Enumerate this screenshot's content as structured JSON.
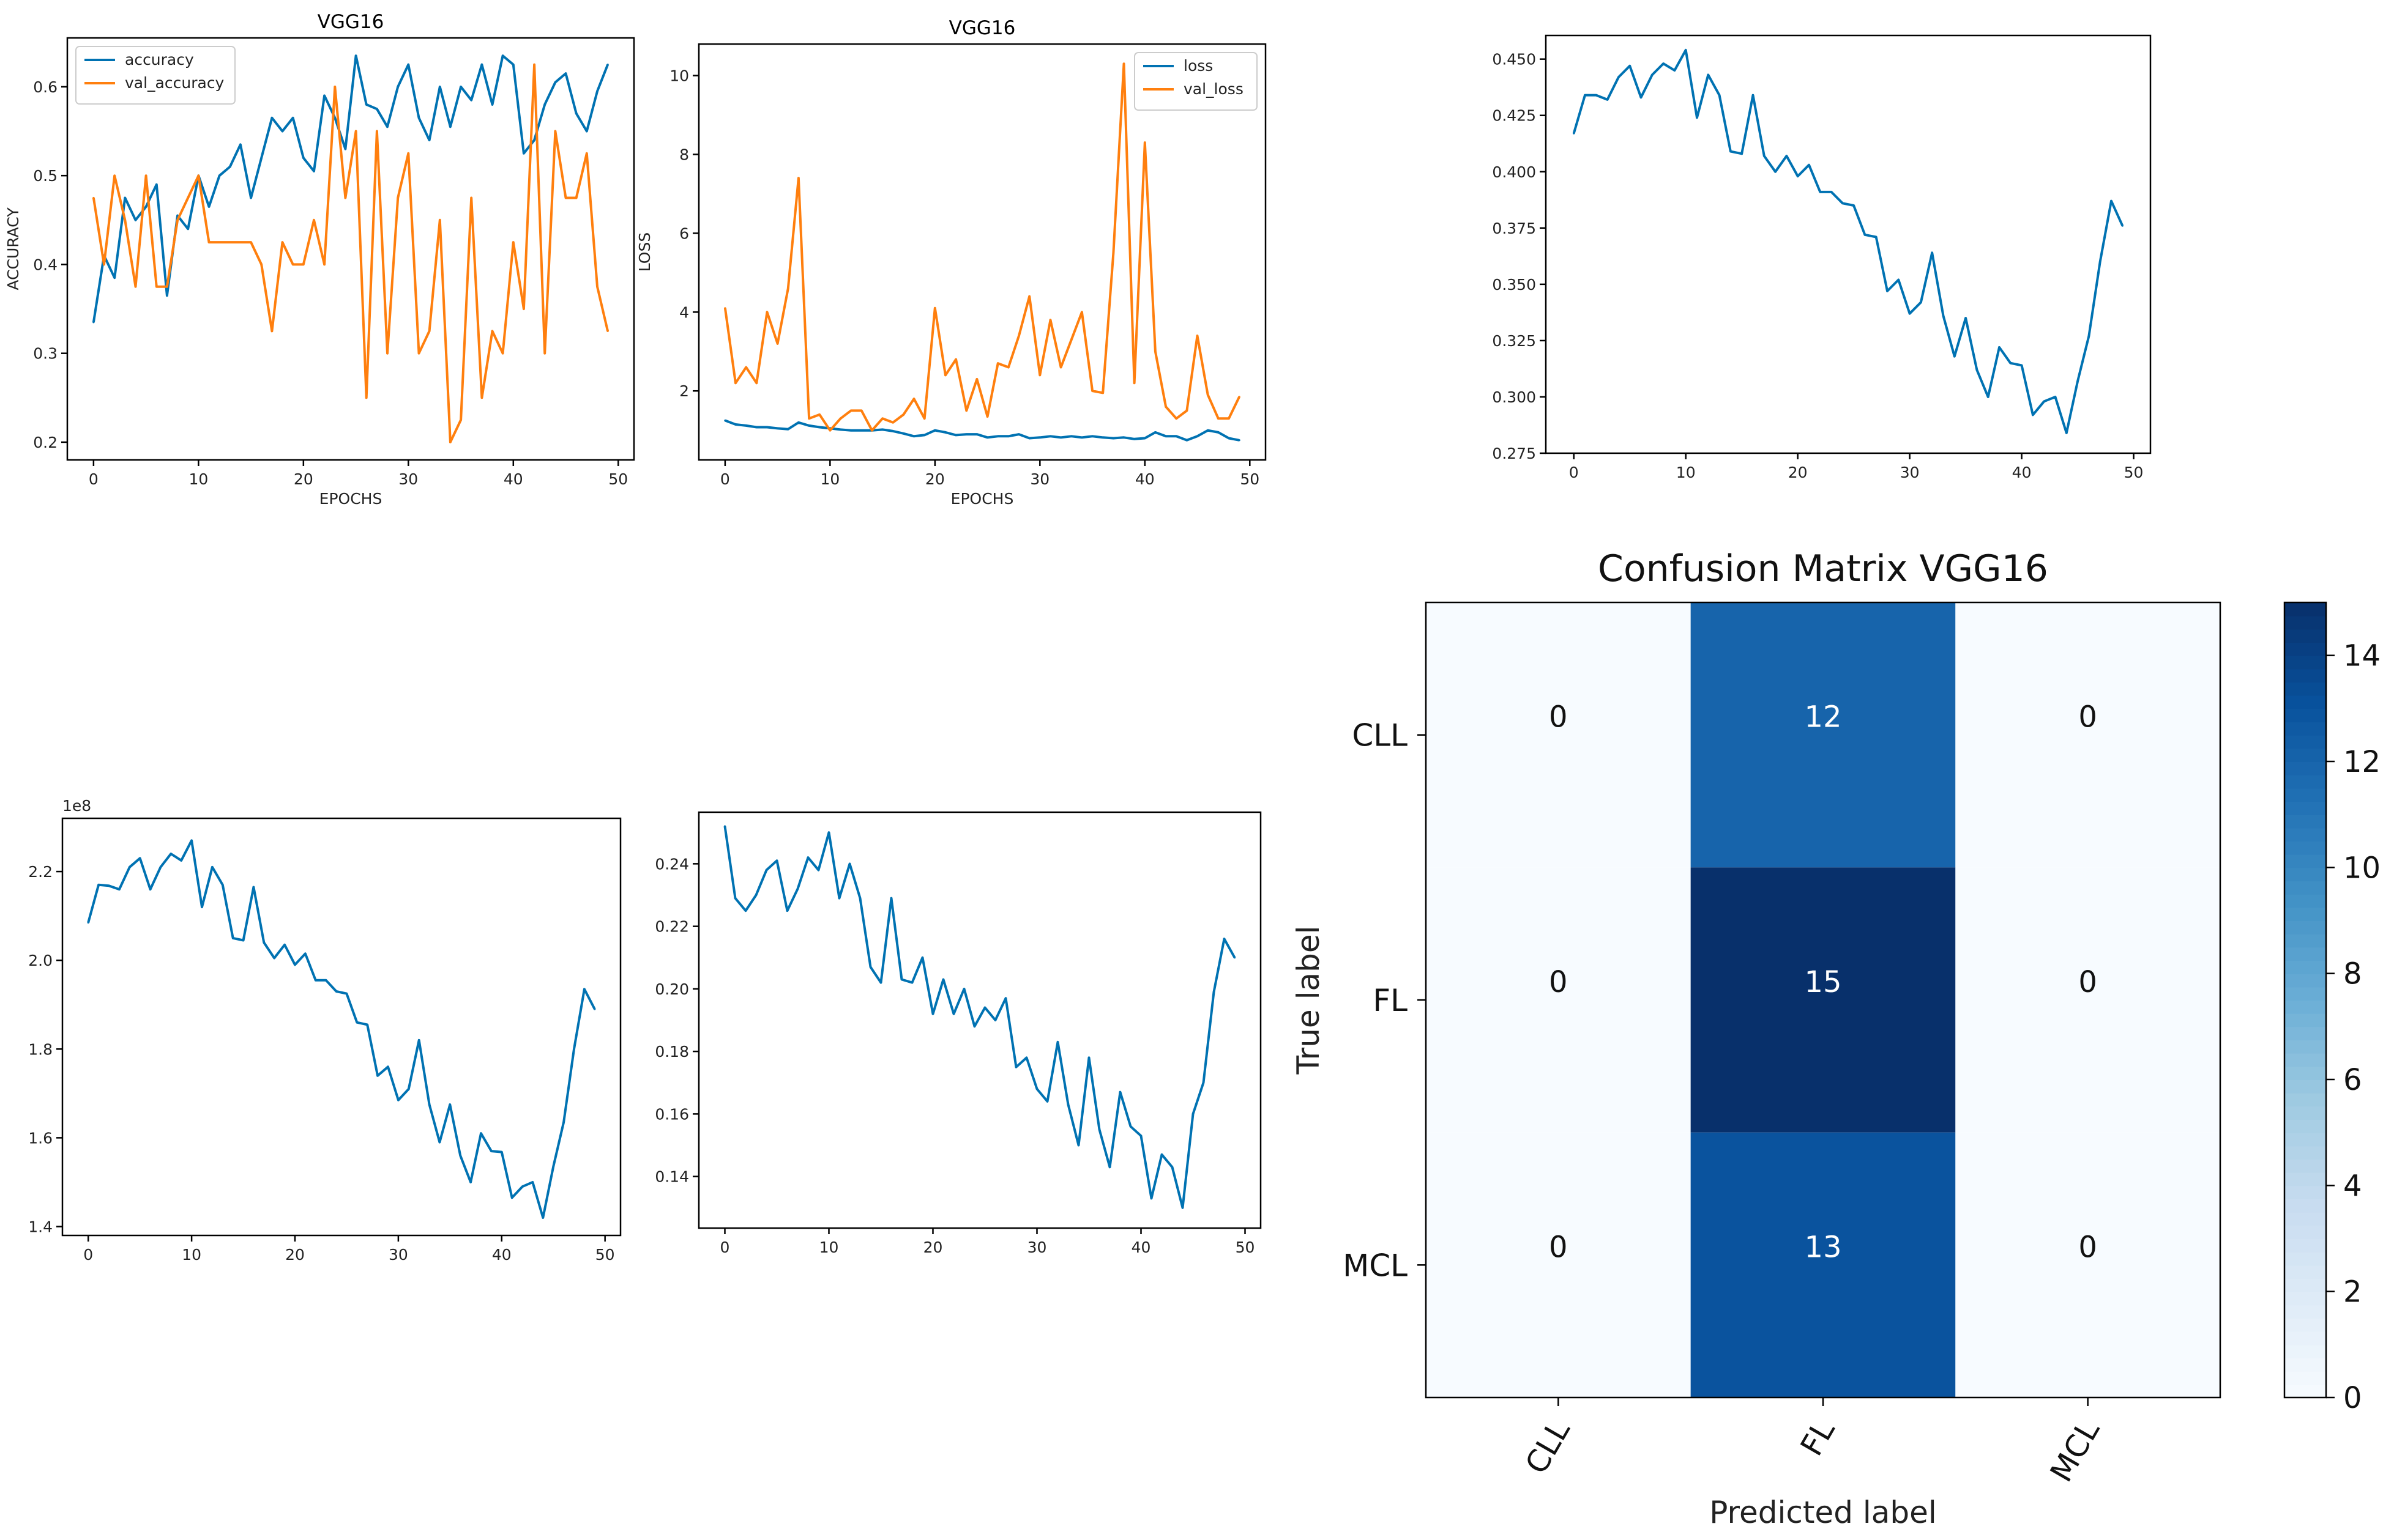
{
  "chart_data": [
    {
      "id": "accuracy",
      "type": "line",
      "title": "VGG16",
      "xlabel": "EPOCHS",
      "ylabel": "ACCURACY",
      "xlim": [
        -2.5,
        51.5
      ],
      "ylim": [
        0.18,
        0.655
      ],
      "xticks": [
        0,
        10,
        20,
        30,
        40,
        50
      ],
      "yticks": [
        0.2,
        0.3,
        0.4,
        0.5,
        0.6
      ],
      "ytick_labels": [
        "0.2",
        "0.3",
        "0.4",
        "0.5",
        "0.6"
      ],
      "legend": "top-left",
      "series": [
        {
          "name": "accuracy",
          "color": "#0072b2",
          "values": [
            0.335,
            0.41,
            0.385,
            0.475,
            0.45,
            0.465,
            0.49,
            0.365,
            0.455,
            0.44,
            0.5,
            0.465,
            0.5,
            0.51,
            0.535,
            0.475,
            0.52,
            0.565,
            0.55,
            0.565,
            0.52,
            0.505,
            0.59,
            0.565,
            0.53,
            0.635,
            0.58,
            0.575,
            0.555,
            0.6,
            0.625,
            0.565,
            0.54,
            0.6,
            0.555,
            0.6,
            0.585,
            0.625,
            0.58,
            0.635,
            0.625,
            0.525,
            0.54,
            0.58,
            0.605,
            0.615,
            0.57,
            0.55,
            0.595,
            0.625
          ]
        },
        {
          "name": "val_accuracy",
          "color": "#ff7f0e",
          "values": [
            0.475,
            0.4,
            0.5,
            0.45,
            0.375,
            0.5,
            0.375,
            0.375,
            0.45,
            0.475,
            0.5,
            0.425,
            0.425,
            0.425,
            0.425,
            0.425,
            0.4,
            0.325,
            0.425,
            0.4,
            0.4,
            0.45,
            0.4,
            0.6,
            0.475,
            0.55,
            0.25,
            0.55,
            0.3,
            0.475,
            0.525,
            0.3,
            0.325,
            0.45,
            0.2,
            0.225,
            0.475,
            0.25,
            0.325,
            0.3,
            0.425,
            0.35,
            0.625,
            0.3,
            0.55,
            0.475,
            0.475,
            0.525,
            0.375,
            0.325
          ]
        }
      ]
    },
    {
      "id": "loss",
      "type": "line",
      "title": "VGG16",
      "xlabel": "EPOCHS",
      "ylabel": "LOSS",
      "xlim": [
        -2.5,
        51.5
      ],
      "ylim": [
        0.25,
        10.8
      ],
      "xticks": [
        0,
        10,
        20,
        30,
        40,
        50
      ],
      "yticks": [
        2,
        4,
        6,
        8,
        10
      ],
      "ytick_labels": [
        "2",
        "4",
        "6",
        "8",
        "10"
      ],
      "legend": "top-right",
      "series": [
        {
          "name": "loss",
          "color": "#0072b2",
          "values": [
            1.25,
            1.15,
            1.12,
            1.08,
            1.08,
            1.05,
            1.03,
            1.2,
            1.12,
            1.08,
            1.05,
            1.02,
            1.0,
            1.0,
            1.0,
            1.02,
            0.98,
            0.92,
            0.85,
            0.88,
            1.0,
            0.95,
            0.88,
            0.9,
            0.9,
            0.82,
            0.85,
            0.85,
            0.9,
            0.8,
            0.82,
            0.85,
            0.82,
            0.85,
            0.82,
            0.85,
            0.82,
            0.8,
            0.82,
            0.78,
            0.8,
            0.95,
            0.85,
            0.85,
            0.75,
            0.85,
            1.0,
            0.95,
            0.8,
            0.75
          ]
        },
        {
          "name": "val_loss",
          "color": "#ff7f0e",
          "values": [
            4.1,
            2.2,
            2.6,
            2.2,
            4.0,
            3.2,
            4.6,
            7.4,
            1.3,
            1.4,
            1.0,
            1.3,
            1.5,
            1.5,
            1.0,
            1.3,
            1.2,
            1.4,
            1.8,
            1.3,
            4.1,
            2.4,
            2.8,
            1.5,
            2.3,
            1.35,
            2.7,
            2.6,
            3.4,
            4.4,
            2.4,
            3.8,
            2.6,
            3.3,
            4.0,
            2.0,
            1.95,
            5.5,
            10.3,
            2.2,
            8.3,
            3.0,
            1.6,
            1.3,
            1.5,
            3.4,
            1.9,
            1.3,
            1.3,
            1.85
          ]
        }
      ]
    },
    {
      "id": "metric-top-right",
      "type": "line",
      "title": "",
      "xlabel": "",
      "ylabel": "",
      "xlim": [
        -2.5,
        51.5
      ],
      "ylim": [
        0.275,
        0.4605
      ],
      "xticks": [
        0,
        10,
        20,
        30,
        40,
        50
      ],
      "yticks": [
        0.275,
        0.3,
        0.325,
        0.35,
        0.375,
        0.4,
        0.425,
        0.45
      ],
      "ytick_labels": [
        "0.275",
        "0.300",
        "0.325",
        "0.350",
        "0.375",
        "0.400",
        "0.425",
        "0.450"
      ],
      "legend": "none",
      "series": [
        {
          "name": "series",
          "color": "#0072b2",
          "values": [
            0.417,
            0.434,
            0.434,
            0.432,
            0.442,
            0.447,
            0.433,
            0.443,
            0.448,
            0.445,
            0.454,
            0.424,
            0.443,
            0.434,
            0.409,
            0.408,
            0.434,
            0.407,
            0.4,
            0.407,
            0.398,
            0.403,
            0.391,
            0.391,
            0.386,
            0.385,
            0.372,
            0.371,
            0.347,
            0.352,
            0.337,
            0.342,
            0.364,
            0.336,
            0.318,
            0.335,
            0.312,
            0.3,
            0.322,
            0.315,
            0.314,
            0.292,
            0.298,
            0.3,
            0.284,
            0.307,
            0.327,
            0.36,
            0.387,
            0.376
          ]
        }
      ]
    },
    {
      "id": "metric-bottom-left",
      "type": "line",
      "title": "",
      "xlabel": "",
      "ylabel": "",
      "offset_text": "1e8",
      "xlim": [
        -2.5,
        51.5
      ],
      "ylim": [
        1.38,
        2.32
      ],
      "xticks": [
        0,
        10,
        20,
        30,
        40,
        50
      ],
      "yticks": [
        1.4,
        1.6,
        1.8,
        2.0,
        2.2
      ],
      "ytick_labels": [
        "1.4",
        "1.6",
        "1.8",
        "2.0",
        "2.2"
      ],
      "legend": "none",
      "series": [
        {
          "name": "series",
          "color": "#0072b2",
          "values": [
            2.085,
            2.17,
            2.168,
            2.16,
            2.21,
            2.23,
            2.16,
            2.21,
            2.24,
            2.225,
            2.27,
            2.12,
            2.21,
            2.17,
            2.05,
            2.045,
            2.165,
            2.04,
            2.005,
            2.035,
            1.99,
            2.015,
            1.955,
            1.955,
            1.93,
            1.925,
            1.86,
            1.855,
            1.74,
            1.76,
            1.685,
            1.71,
            1.82,
            1.675,
            1.59,
            1.675,
            1.56,
            1.5,
            1.61,
            1.57,
            1.568,
            1.465,
            1.49,
            1.5,
            1.42,
            1.535,
            1.635,
            1.8,
            1.935,
            1.89
          ]
        }
      ]
    },
    {
      "id": "metric-bottom-middle",
      "type": "line",
      "title": "",
      "xlabel": "",
      "ylabel": "",
      "xlim": [
        -2.5,
        51.5
      ],
      "ylim": [
        0.1235,
        0.2565
      ],
      "xticks": [
        0,
        10,
        20,
        30,
        40,
        50
      ],
      "yticks": [
        0.14,
        0.16,
        0.18,
        0.2,
        0.22,
        0.24
      ],
      "ytick_labels": [
        "0.14",
        "0.16",
        "0.18",
        "0.20",
        "0.22",
        "0.24"
      ],
      "legend": "none",
      "series": [
        {
          "name": "series",
          "color": "#0072b2",
          "values": [
            0.252,
            0.229,
            0.225,
            0.23,
            0.238,
            0.241,
            0.225,
            0.232,
            0.242,
            0.238,
            0.25,
            0.229,
            0.24,
            0.229,
            0.207,
            0.202,
            0.229,
            0.203,
            0.202,
            0.21,
            0.192,
            0.203,
            0.192,
            0.2,
            0.188,
            0.194,
            0.19,
            0.197,
            0.175,
            0.178,
            0.168,
            0.164,
            0.183,
            0.163,
            0.15,
            0.178,
            0.155,
            0.143,
            0.167,
            0.156,
            0.153,
            0.133,
            0.147,
            0.143,
            0.13,
            0.16,
            0.17,
            0.199,
            0.216,
            0.21
          ]
        }
      ]
    },
    {
      "id": "confusion-matrix",
      "type": "heatmap",
      "title": "Confusion Matrix VGG16",
      "xlabel": "Predicted label",
      "ylabel": "True label",
      "row_labels": [
        "CLL",
        "FL",
        "MCL"
      ],
      "col_labels": [
        "CLL",
        "FL",
        "MCL"
      ],
      "matrix": [
        [
          0,
          12,
          0
        ],
        [
          0,
          15,
          0
        ],
        [
          0,
          13,
          0
        ]
      ],
      "vmin": 0,
      "vmax": 15,
      "colorbar_ticks": [
        0,
        2,
        4,
        6,
        8,
        10,
        12,
        14
      ],
      "colormap": "Blues",
      "text_color_light": "#ffffff",
      "text_color_dark": "#111111"
    }
  ]
}
